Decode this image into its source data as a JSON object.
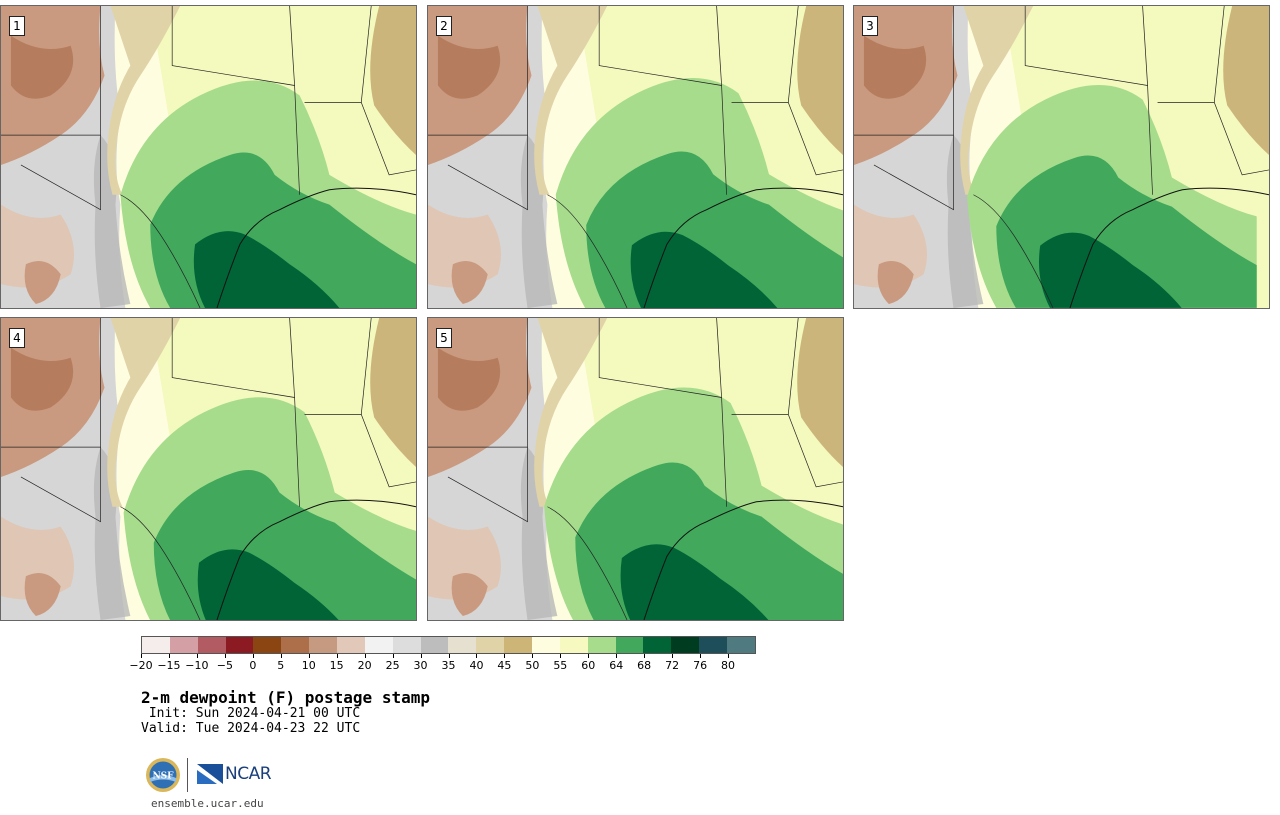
{
  "panels": [
    {
      "label": "1"
    },
    {
      "label": "2"
    },
    {
      "label": "3"
    },
    {
      "label": "4"
    },
    {
      "label": "5"
    }
  ],
  "colorbar": {
    "colors": [
      "#f5ecec",
      "#d4a0a6",
      "#b25b62",
      "#8b1a23",
      "#8b4513",
      "#ad6e4a",
      "#c69a80",
      "#e2c8b8",
      "#f2f2f2",
      "#dddddd",
      "#bdbdbd",
      "#e6e0d0",
      "#e0d3a8",
      "#cdb477",
      "#fffde0",
      "#f6fac0",
      "#a6dc8c",
      "#41a85c",
      "#006437",
      "#003c20",
      "#1e4e5a",
      "#4e7a80"
    ],
    "ticks": [
      "−20",
      "−15",
      "−10",
      "−5",
      "0",
      "5",
      "10",
      "15",
      "20",
      "25",
      "30",
      "35",
      "40",
      "45",
      "50",
      "55",
      "60",
      "64",
      "68",
      "72",
      "76",
      "80"
    ]
  },
  "title": "2-m dewpoint (F) postage stamp",
  "init": " Init: Sun 2024-04-21 00 UTC",
  "valid": "Valid: Tue 2024-04-23 22 UTC",
  "logos": {
    "nsf": "NSF",
    "ncar": "NCAR"
  },
  "url": "ensemble.ucar.edu"
}
